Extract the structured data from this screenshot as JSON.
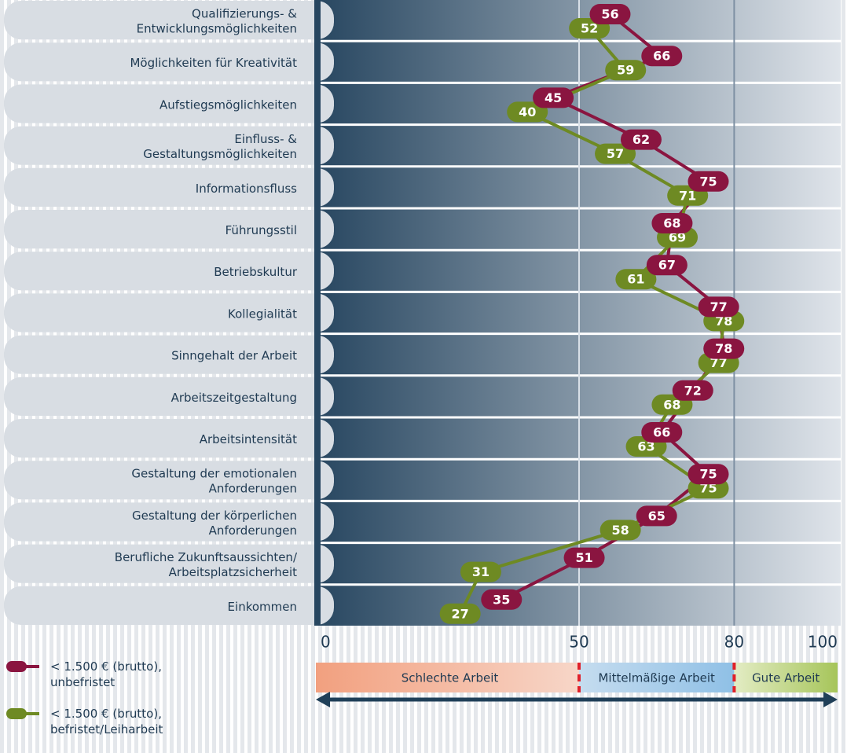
{
  "chart_data": {
    "type": "line",
    "orientation": "horizontal",
    "categories": [
      "Qualifizierungs- &\nEntwicklungsmöglichkeiten",
      "Möglichkeiten für Kreativität",
      "Aufstiegsmöglichkeiten",
      "Einfluss- &\nGestaltungsmöglichkeiten",
      "Informationsfluss",
      "Führungsstil",
      "Betriebskultur",
      "Kollegialität",
      "Sinngehalt der Arbeit",
      "Arbeitszeitgestaltung",
      "Arbeitsintensität",
      "Gestaltung der emotionalen\nAnforderungen",
      "Gestaltung der körperlichen\nAnforderungen",
      "Berufliche Zukunftsaussichten/\nArbeitsplatzsicherheit",
      "Einkommen"
    ],
    "series": [
      {
        "name": "< 1.500 € (brutto),\nunbefristet",
        "color": "#8a1540",
        "values": [
          56,
          66,
          45,
          62,
          75,
          68,
          67,
          77,
          78,
          72,
          66,
          75,
          65,
          51,
          35
        ]
      },
      {
        "name": "< 1.500 € (brutto),\nbefristet/Leiharbeit",
        "color": "#6e8a23",
        "values": [
          52,
          59,
          40,
          57,
          71,
          69,
          61,
          78,
          77,
          68,
          63,
          75,
          58,
          31,
          27
        ]
      }
    ],
    "xlim": [
      0,
      100
    ],
    "xticks": [
      0,
      50,
      80,
      100
    ],
    "zones": [
      {
        "label": "Schlechte Arbeit",
        "from": 0,
        "to": 50
      },
      {
        "label": "Mittelmäßige Arbeit",
        "from": 50,
        "to": 80
      },
      {
        "label": "Gute Arbeit",
        "from": 80,
        "to": 100
      }
    ]
  }
}
